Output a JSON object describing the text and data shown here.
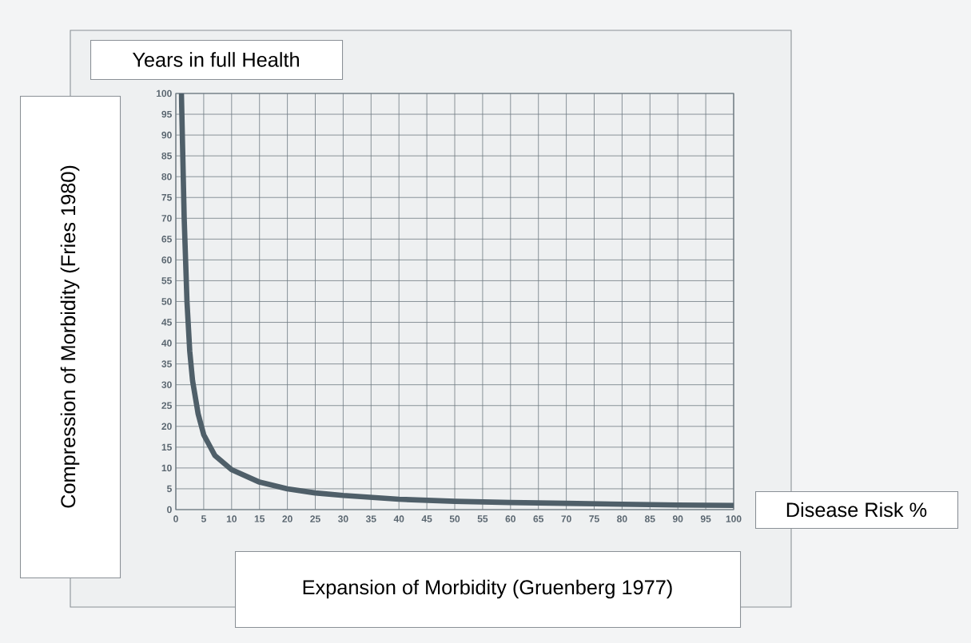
{
  "chart_data": {
    "type": "line",
    "xlabel": "Disease Risk %",
    "ylabel": "Years in full Health",
    "annotations": [
      "Compression of Morbidity (Fries 1980)",
      "Expansion of Morbidity (Gruenberg 1977)"
    ],
    "x": [
      1,
      1.5,
      2,
      2.5,
      3,
      4,
      5,
      7,
      10,
      15,
      20,
      25,
      30,
      40,
      50,
      60,
      70,
      80,
      90,
      100
    ],
    "series": [
      {
        "color": "#4f5f69",
        "values": [
          100,
          70,
          50,
          38,
          31,
          23,
          18,
          13,
          9.6,
          6.6,
          5,
          4,
          3.4,
          2.5,
          2,
          1.7,
          1.5,
          1.3,
          1.1,
          1
        ]
      }
    ],
    "xlim": [
      0,
      100
    ],
    "ylim": [
      0,
      100
    ],
    "xticks": [
      0,
      5,
      10,
      15,
      20,
      25,
      30,
      35,
      40,
      45,
      50,
      55,
      60,
      65,
      70,
      75,
      80,
      85,
      90,
      95,
      100
    ],
    "yticks": [
      0,
      5,
      10,
      15,
      20,
      25,
      30,
      35,
      40,
      45,
      50,
      55,
      60,
      65,
      70,
      75,
      80,
      85,
      90,
      95,
      100
    ],
    "grid": true,
    "marker": "none",
    "line_style": "solid"
  }
}
